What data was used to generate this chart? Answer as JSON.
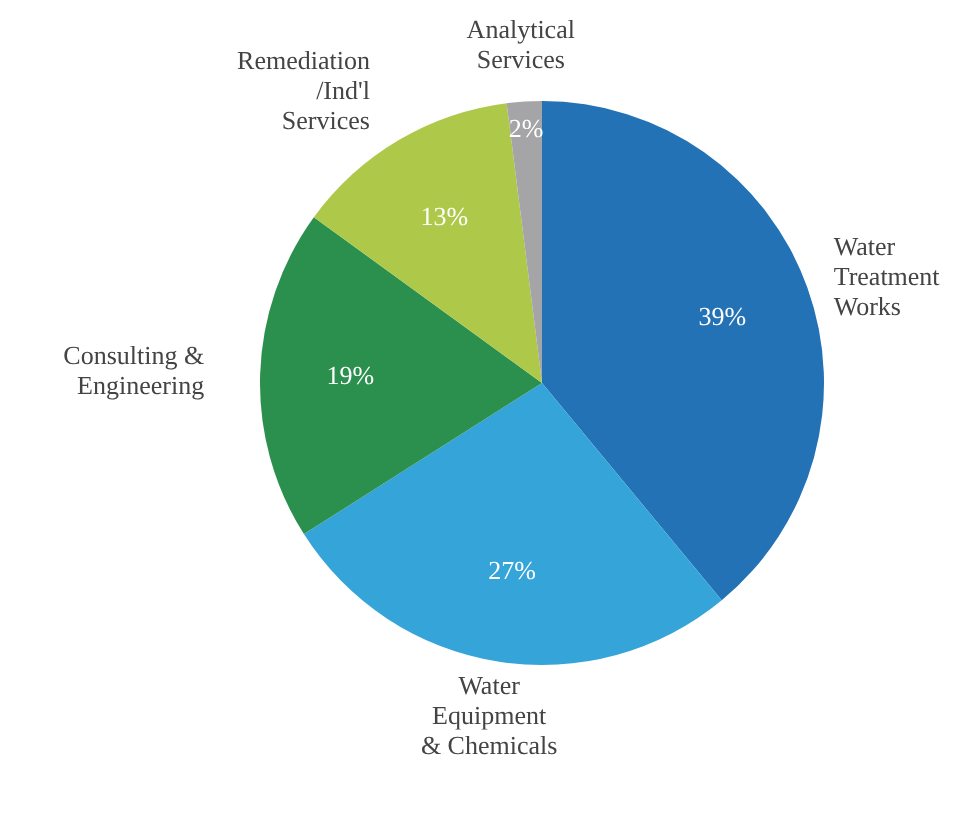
{
  "chart_data": {
    "type": "pie",
    "categories": [
      "Water\nTreatment\nWorks",
      "Water\nEquipment\n& Chemicals",
      "Consulting &\nEngineering",
      "Remediation\n/Ind'l\nServices",
      "Analytical\nServices"
    ],
    "values": [
      39,
      27,
      19,
      13,
      2
    ],
    "colors": [
      "#2372b5",
      "#35a4d8",
      "#2b8f4e",
      "#aec94a",
      "#a5a5a8"
    ],
    "value_labels": [
      "39%",
      "27%",
      "19%",
      "13%",
      "2%"
    ],
    "legend": false
  }
}
